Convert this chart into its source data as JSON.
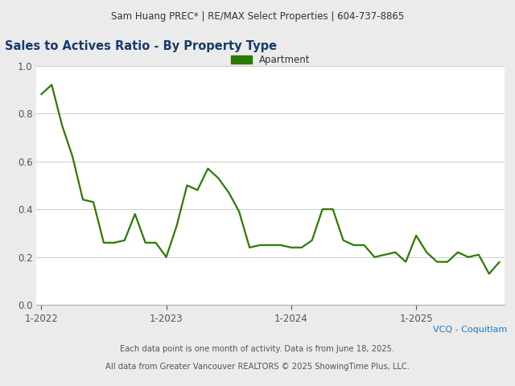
{
  "header_text": "Sam Huang PREC* | RE/MAX Select Properties | 604-737-8865",
  "title": "Sales to Actives Ratio - By Property Type",
  "title_color": "#1a3a6b",
  "legend_label": "Apartment",
  "line_color": "#2d7a00",
  "footer_text1": "VCQ - Coquitlam",
  "footer_text2": "Each data point is one month of activity. Data is from June 18, 2025.",
  "footer_text3": "All data from Greater Vancouver REALTORS © 2025 ShowingTime Plus, LLC.",
  "footer_color1": "#1a7abf",
  "footer_color2": "#555555",
  "background_color": "#ebebeb",
  "plot_background": "#ffffff",
  "ylim": [
    0.0,
    1.0
  ],
  "yticks": [
    0.0,
    0.2,
    0.4,
    0.6,
    0.8,
    1.0
  ],
  "xtick_labels": [
    "1-2022",
    "1-2023",
    "1-2024",
    "1-2025"
  ],
  "xtick_positions": [
    0,
    12,
    24,
    36
  ],
  "values": [
    0.88,
    0.92,
    0.75,
    0.62,
    0.44,
    0.43,
    0.26,
    0.26,
    0.27,
    0.38,
    0.26,
    0.26,
    0.2,
    0.33,
    0.5,
    0.48,
    0.57,
    0.53,
    0.47,
    0.39,
    0.24,
    0.25,
    0.25,
    0.25,
    0.24,
    0.24,
    0.27,
    0.4,
    0.4,
    0.27,
    0.25,
    0.25,
    0.2,
    0.21,
    0.22,
    0.18,
    0.29,
    0.22,
    0.18,
    0.18,
    0.22,
    0.2,
    0.21,
    0.13,
    0.18
  ]
}
